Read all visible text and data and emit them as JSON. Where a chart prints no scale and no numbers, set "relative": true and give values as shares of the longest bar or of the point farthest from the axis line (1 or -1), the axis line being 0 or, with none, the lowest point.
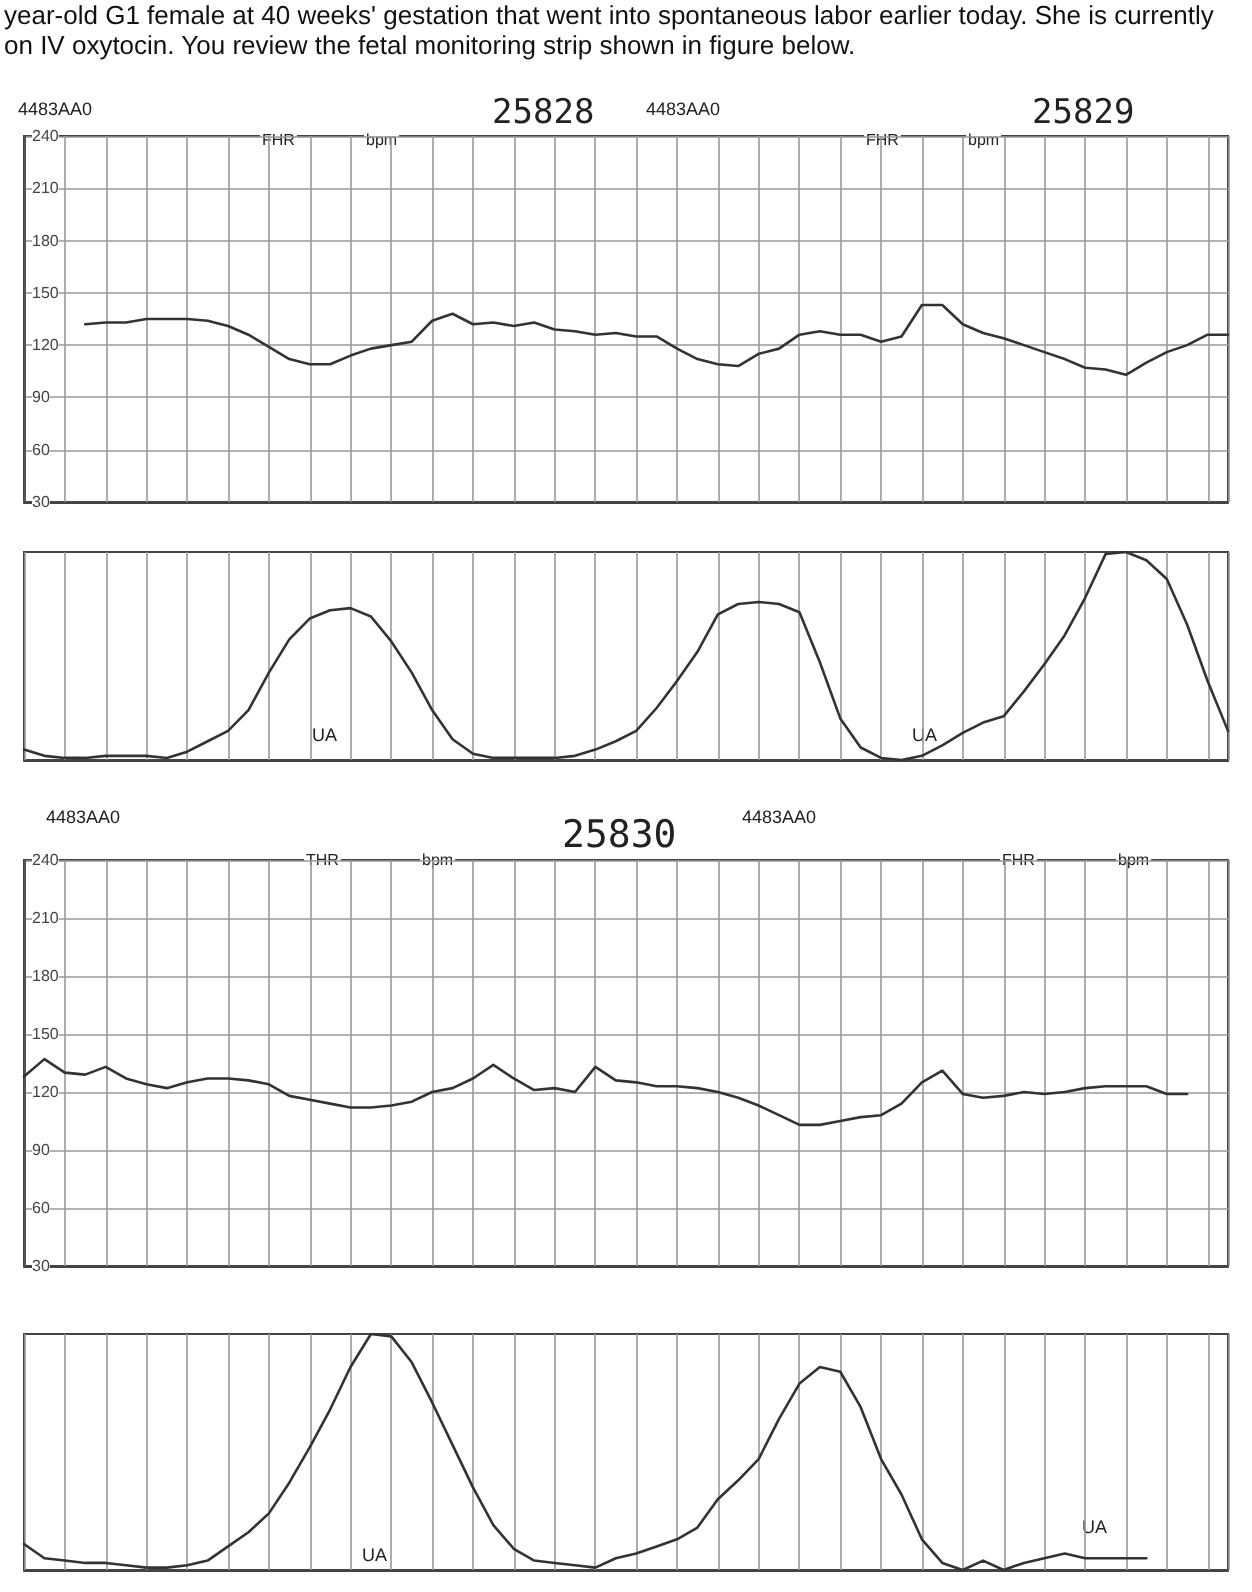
{
  "chart_data": [
    {
      "type": "line",
      "title": "year-old G1 female at 40 weeks' gestation that went into spontaneous labor earlier today. She is currently on IV oxytocin. You review the fetal monitoring strip shown in figure below.",
      "categories": [
        null,
        null,
        null,
        null,
        null,
        null,
        null,
        null,
        null,
        null,
        null,
        null,
        null,
        null,
        null,
        null,
        null,
        null,
        null,
        null,
        null,
        null,
        null,
        null,
        null,
        null,
        null,
        null,
        null,
        null,
        null,
        null,
        null,
        null,
        null,
        null,
        null,
        null,
        null,
        null,
        null,
        null,
        null,
        null,
        null,
        null,
        null,
        null,
        null,
        null,
        null,
        null,
        null,
        null,
        null,
        null,
        null,
        null,
        null,
        null
      ],
      "series": [
        {
          "color": "#333333",
          "values": [
            null,
            null,
            null,
            132,
            133,
            133,
            135,
            135,
            135,
            134,
            131,
            126,
            119,
            112,
            109,
            109,
            114,
            118,
            120,
            122,
            134,
            138,
            132,
            133,
            131,
            133,
            129,
            128,
            126,
            127,
            125,
            125,
            118,
            112,
            109,
            108,
            115,
            118,
            126,
            128,
            126,
            126,
            122,
            125,
            143,
            143,
            132,
            127,
            124,
            120,
            116,
            112,
            107,
            106,
            103,
            110,
            116,
            120,
            126,
            126
          ]
        }
      ],
      "ylim": [
        30,
        240
      ],
      "yticks": [
        30,
        60,
        90,
        120,
        150,
        180,
        210,
        240
      ],
      "grid": true,
      "tick_labels": "y",
      "line_style": "solid",
      "marker": "none",
      "annotations": [
        "4483AA0",
        "25828",
        "4483AA0",
        "25829",
        "FHR",
        "bpm",
        "FHR",
        "bpm"
      ]
    },
    {
      "type": "line",
      "relative": true,
      "categories": [
        null,
        null,
        null,
        null,
        null,
        null,
        null,
        null,
        null,
        null,
        null,
        null,
        null,
        null,
        null,
        null,
        null,
        null,
        null,
        null,
        null,
        null,
        null,
        null,
        null,
        null,
        null,
        null,
        null,
        null,
        null,
        null,
        null,
        null,
        null,
        null,
        null,
        null,
        null,
        null,
        null,
        null,
        null,
        null,
        null,
        null,
        null,
        null,
        null,
        null,
        null,
        null,
        null,
        null,
        null,
        null,
        null,
        null,
        null,
        null
      ],
      "series": [
        {
          "color": "#333333",
          "values": [
            0.05,
            0.02,
            0.01,
            0.01,
            0.02,
            0.02,
            0.02,
            0.01,
            0.04,
            0.09,
            0.14,
            0.24,
            0.42,
            0.58,
            0.68,
            0.72,
            0.73,
            0.69,
            0.57,
            0.42,
            0.24,
            0.1,
            0.03,
            0.01,
            0.01,
            0.01,
            0.01,
            0.02,
            0.05,
            0.09,
            0.14,
            0.25,
            0.38,
            0.52,
            0.7,
            0.75,
            0.76,
            0.75,
            0.71,
            0.47,
            0.2,
            0.06,
            0.01,
            0,
            0.02,
            0.07,
            0.13,
            0.18,
            0.21,
            0.33,
            0.46,
            0.6,
            0.78,
            0.99,
            1,
            0.96,
            0.87,
            0.65,
            0.38,
            0.14
          ]
        }
      ],
      "grid": "x",
      "tick_labels": false,
      "line_style": "solid",
      "marker": "none",
      "annotations": [
        "UA",
        "UA"
      ]
    },
    {
      "type": "line",
      "categories": [
        null,
        null,
        null,
        null,
        null,
        null,
        null,
        null,
        null,
        null,
        null,
        null,
        null,
        null,
        null,
        null,
        null,
        null,
        null,
        null,
        null,
        null,
        null,
        null,
        null,
        null,
        null,
        null,
        null,
        null,
        null,
        null,
        null,
        null,
        null,
        null,
        null,
        null,
        null,
        null,
        null,
        null,
        null,
        null,
        null,
        null,
        null,
        null,
        null,
        null,
        null,
        null,
        null,
        null,
        null,
        null,
        null,
        null,
        null,
        null
      ],
      "series": [
        {
          "color": "#333333",
          "values": [
            128,
            137,
            130,
            129,
            133,
            127,
            124,
            122,
            125,
            127,
            127,
            126,
            124,
            118,
            116,
            114,
            112,
            112,
            113,
            115,
            120,
            122,
            127,
            134,
            127,
            121,
            122,
            120,
            133,
            126,
            125,
            123,
            123,
            122,
            120,
            117,
            113,
            108,
            103,
            103,
            105,
            107,
            108,
            114,
            125,
            131,
            119,
            117,
            118,
            120,
            119,
            120,
            122,
            123,
            123,
            123,
            119,
            119,
            null,
            null
          ]
        }
      ],
      "ylim": [
        30,
        240
      ],
      "yticks": [
        30,
        60,
        90,
        120,
        150,
        180,
        210,
        240
      ],
      "grid": true,
      "tick_labels": "y",
      "line_style": "solid",
      "marker": "none",
      "annotations": [
        "4483AA0",
        "25830",
        "4483AA0",
        "THR",
        "bpm",
        "FHR",
        "bpm"
      ]
    },
    {
      "type": "line",
      "relative": true,
      "categories": [
        null,
        null,
        null,
        null,
        null,
        null,
        null,
        null,
        null,
        null,
        null,
        null,
        null,
        null,
        null,
        null,
        null,
        null,
        null,
        null,
        null,
        null,
        null,
        null,
        null,
        null,
        null,
        null,
        null,
        null,
        null,
        null,
        null,
        null,
        null,
        null,
        null,
        null,
        null,
        null,
        null,
        null,
        null,
        null,
        null,
        null,
        null,
        null,
        null,
        null,
        null,
        null,
        null,
        null,
        null,
        null,
        null,
        null,
        null,
        null
      ],
      "series": [
        {
          "color": "#333333",
          "values": [
            0.11,
            0.05,
            0.04,
            0.03,
            0.03,
            0.02,
            0.01,
            0.01,
            0.02,
            0.04,
            0.1,
            0.16,
            0.24,
            0.37,
            0.52,
            0.68,
            0.86,
            1,
            0.99,
            0.88,
            0.71,
            0.53,
            0.35,
            0.19,
            0.09,
            0.04,
            0.03,
            0.02,
            0.01,
            0.05,
            0.07,
            0.1,
            0.13,
            0.18,
            0.3,
            0.38,
            0.47,
            0.64,
            0.79,
            0.86,
            0.84,
            0.69,
            0.47,
            0.32,
            0.13,
            0.03,
            0,
            0.04,
            0,
            0.03,
            0.05,
            0.07,
            0.05,
            0.05,
            0.05,
            0.05,
            null,
            null,
            null,
            null
          ]
        }
      ],
      "grid": "x",
      "tick_labels": false,
      "line_style": "solid",
      "marker": "none",
      "annotations": [
        "UA",
        "UA"
      ]
    }
  ]
}
